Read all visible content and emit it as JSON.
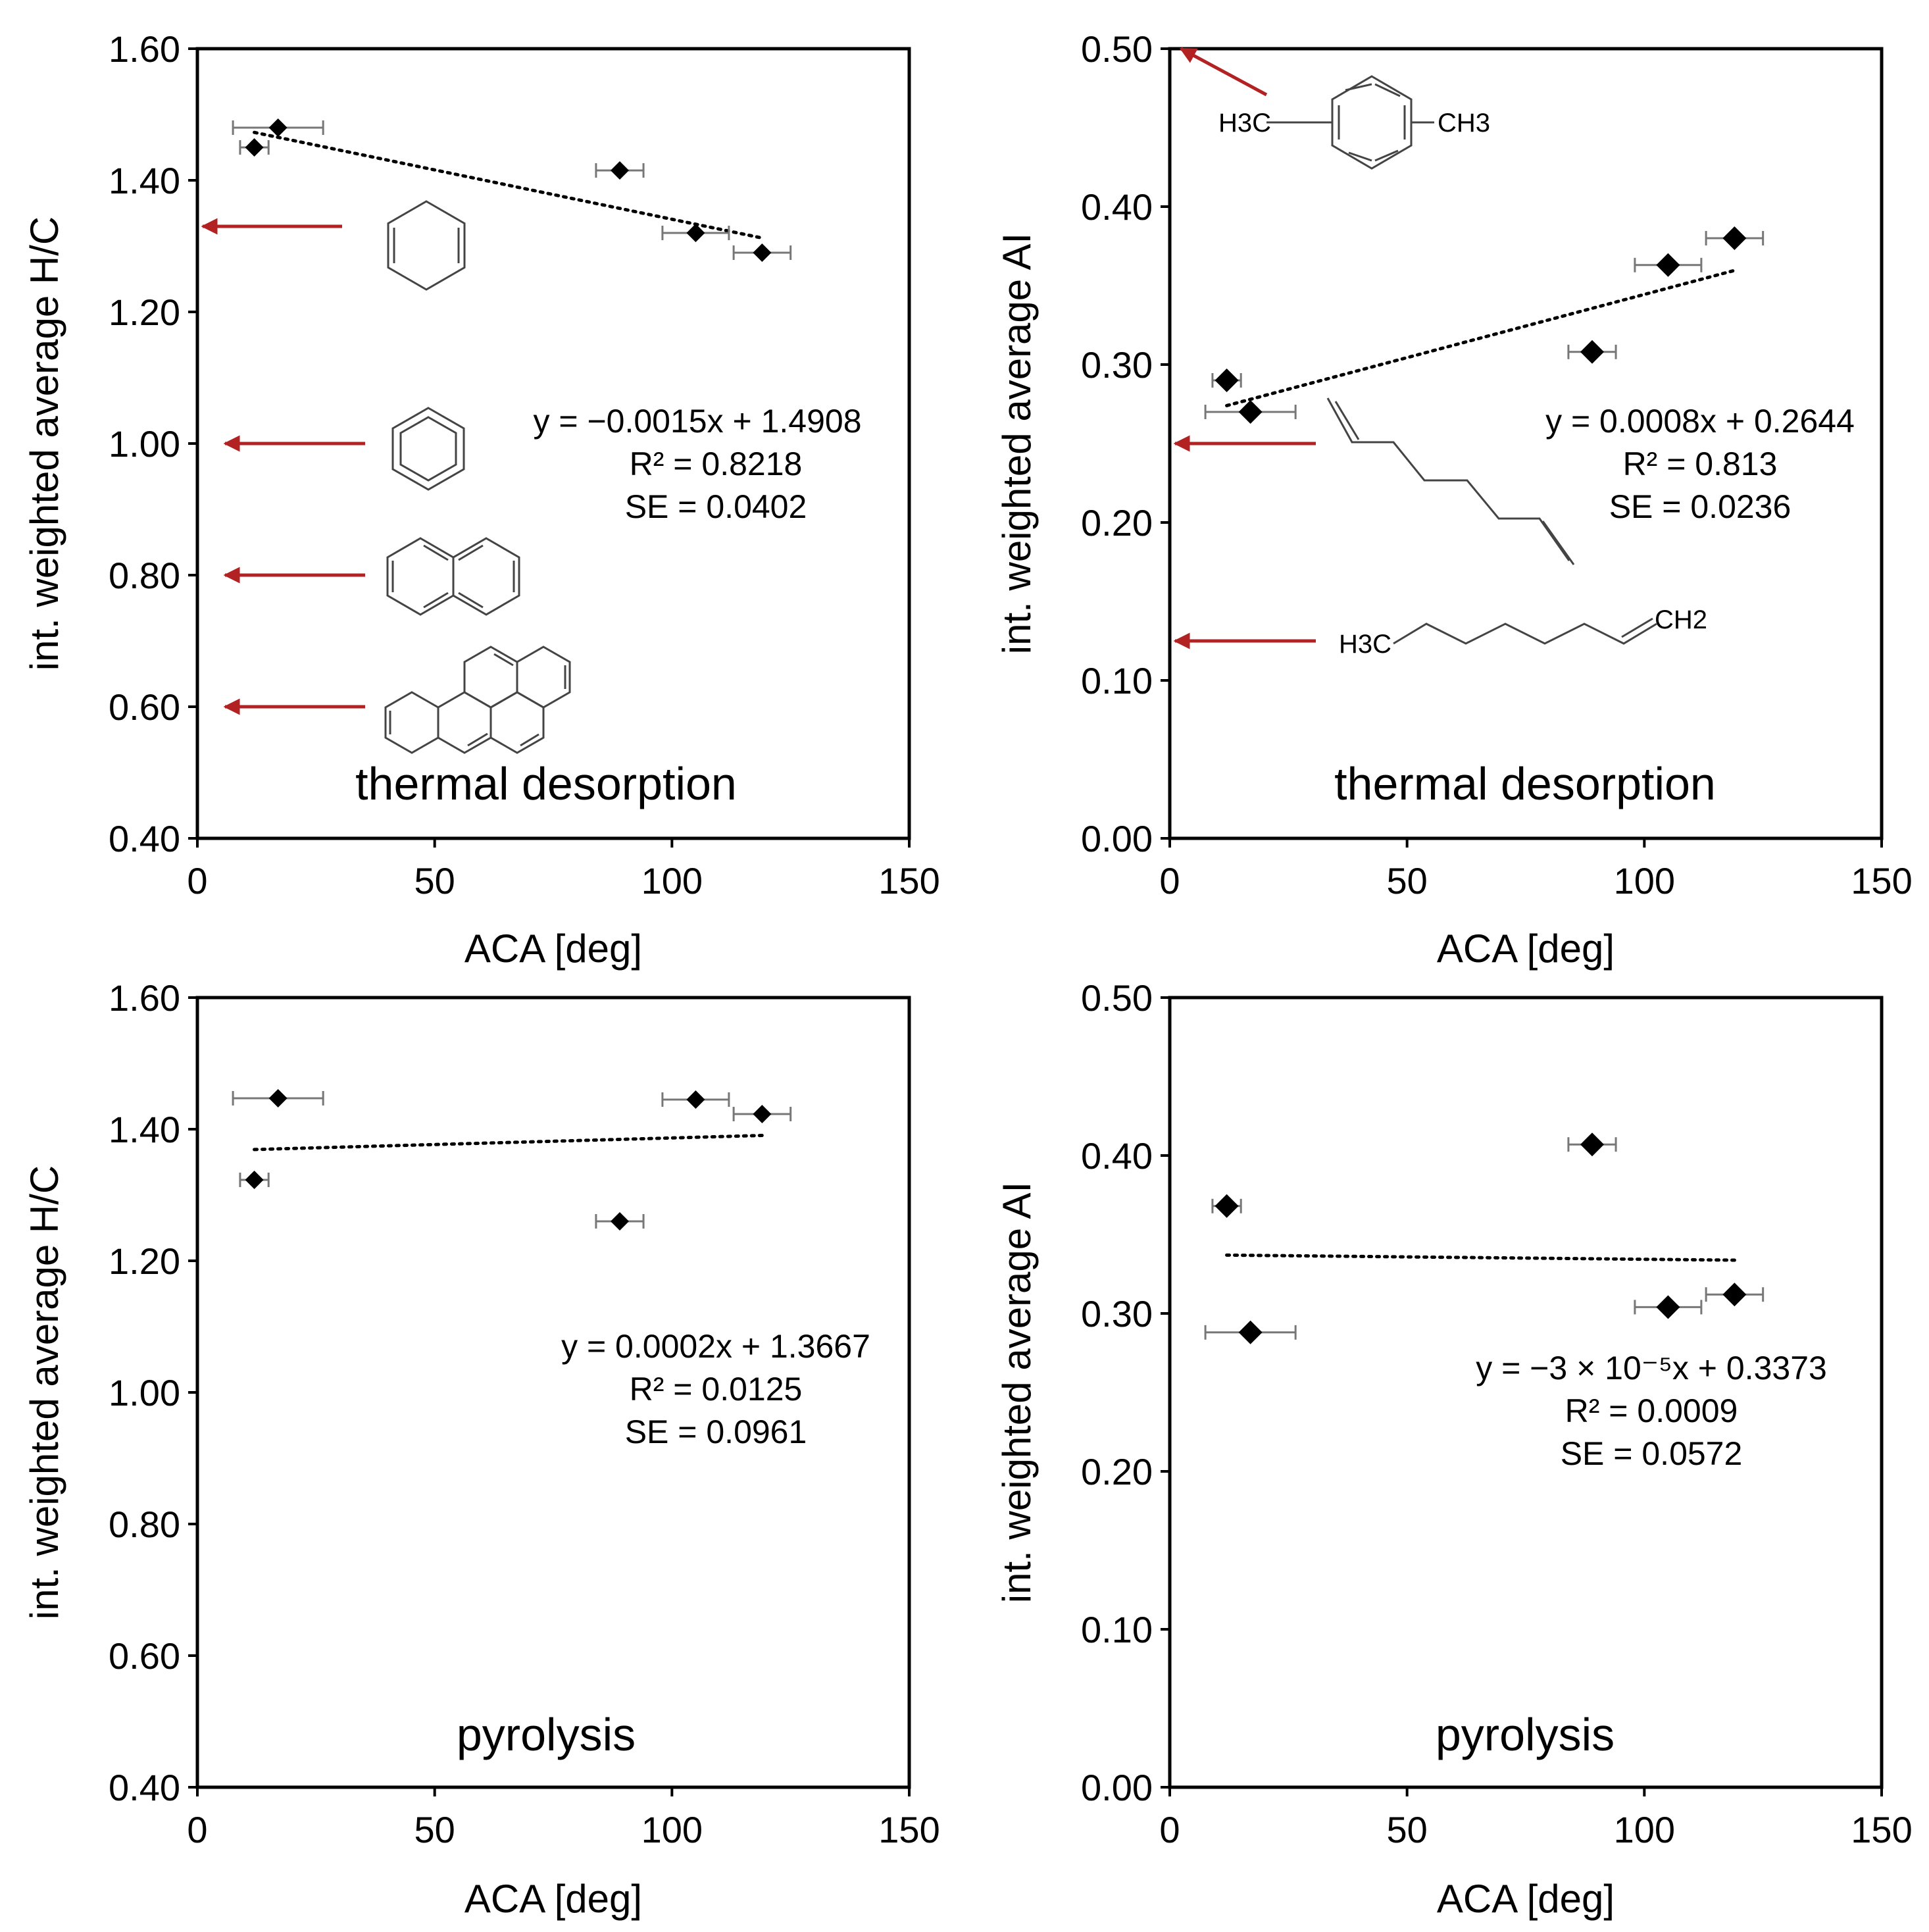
{
  "colors": {
    "markers": "#000000",
    "arrows": "#b22222",
    "structures": "#444444"
  },
  "chart_data": [
    {
      "id": "td-hc",
      "type": "scatter",
      "panel_label": "thermal desorption",
      "xlabel": "ACA [deg]",
      "ylabel": "int. weighted average H/C",
      "xlim": [
        0,
        150
      ],
      "ylim": [
        0.4,
        1.6
      ],
      "xticks": [
        "0",
        "50",
        "100",
        "150"
      ],
      "yticks": [
        "0.40",
        "0.60",
        "0.80",
        "1.00",
        "1.20",
        "1.40",
        "1.60"
      ],
      "grid": false,
      "marker_size": 14,
      "points": [
        {
          "x": 12,
          "y": 1.45,
          "xerr": 3
        },
        {
          "x": 17,
          "y": 1.48,
          "xerr": 9.5
        },
        {
          "x": 89,
          "y": 1.415,
          "xerr": 5
        },
        {
          "x": 105,
          "y": 1.32,
          "xerr": 7
        },
        {
          "x": 119,
          "y": 1.29,
          "xerr": 6
        }
      ],
      "trend": {
        "slope": -0.0015,
        "intercept": 1.4908,
        "x_range": [
          12,
          119
        ]
      },
      "equation": [
        "y = −0.0015x + 1.4908",
        "R² = 0.8218",
        "SE = 0.0402"
      ],
      "reference_arrows": [
        {
          "y": 1.33,
          "structure": "cyclohexadiene-icon"
        },
        {
          "y": 1.0,
          "structure": "benzene-icon"
        },
        {
          "y": 0.8,
          "structure": "naphthalene-icon"
        },
        {
          "y": 0.6,
          "structure": "benzopyrene-icon"
        }
      ]
    },
    {
      "id": "td-ai",
      "type": "scatter",
      "panel_label": "thermal desorption",
      "xlabel": "ACA [deg]",
      "ylabel": "int. weighted average AI",
      "xlim": [
        0,
        150
      ],
      "ylim": [
        0.0,
        0.5
      ],
      "xticks": [
        "0",
        "50",
        "100",
        "150"
      ],
      "yticks": [
        "0.00",
        "0.10",
        "0.20",
        "0.30",
        "0.40",
        "0.50"
      ],
      "grid": false,
      "marker_size": 18,
      "points": [
        {
          "x": 12,
          "y": 0.29,
          "xerr": 3
        },
        {
          "x": 17,
          "y": 0.27,
          "xerr": 9.5
        },
        {
          "x": 89,
          "y": 0.308,
          "xerr": 5
        },
        {
          "x": 105,
          "y": 0.363,
          "xerr": 7
        },
        {
          "x": 119,
          "y": 0.38,
          "xerr": 6
        }
      ],
      "trend": {
        "slope": 0.0008,
        "intercept": 0.2644,
        "x_range": [
          12,
          119
        ]
      },
      "equation": [
        "y = 0.0008x + 0.2644",
        "R² = 0.813",
        "SE = 0.0236"
      ],
      "reference_arrows": [
        {
          "y": 0.5,
          "structure": "p-xylene-icon"
        },
        {
          "y": 0.25,
          "structure": "nonadiene-icon"
        },
        {
          "y": 0.125,
          "structure": "nonene-icon"
        }
      ],
      "chem_labels": {
        "p_xylene_left": "H3C",
        "p_xylene_right": "CH3",
        "nonene_left": "H3C",
        "nonene_right": "CH2"
      }
    },
    {
      "id": "py-hc",
      "type": "scatter",
      "panel_label": "pyrolysis",
      "xlabel": "ACA [deg]",
      "ylabel": "int. weighted average H/C",
      "xlim": [
        0,
        150
      ],
      "ylim": [
        0.4,
        1.6
      ],
      "xticks": [
        "0",
        "50",
        "100",
        "150"
      ],
      "yticks": [
        "0.40",
        "0.60",
        "0.80",
        "1.00",
        "1.20",
        "1.40",
        "1.60"
      ],
      "grid": false,
      "marker_size": 14,
      "points": [
        {
          "x": 12,
          "y": 1.323,
          "xerr": 3
        },
        {
          "x": 17,
          "y": 1.447,
          "xerr": 9.5
        },
        {
          "x": 89,
          "y": 1.26,
          "xerr": 5
        },
        {
          "x": 105,
          "y": 1.445,
          "xerr": 7
        },
        {
          "x": 119,
          "y": 1.423,
          "xerr": 6
        }
      ],
      "trend": {
        "slope": 0.0002,
        "intercept": 1.3667,
        "x_range": [
          12,
          119
        ]
      },
      "equation": [
        "y = 0.0002x + 1.3667",
        "R² = 0.0125",
        "SE = 0.0961"
      ]
    },
    {
      "id": "py-ai",
      "type": "scatter",
      "panel_label": "pyrolysis",
      "xlabel": "ACA [deg]",
      "ylabel": "int. weighted average AI",
      "xlim": [
        0,
        150
      ],
      "ylim": [
        0.0,
        0.5
      ],
      "xticks": [
        "0",
        "50",
        "100",
        "150"
      ],
      "yticks": [
        "0.00",
        "0.10",
        "0.20",
        "0.30",
        "0.40",
        "0.50"
      ],
      "grid": false,
      "marker_size": 18,
      "points": [
        {
          "x": 12,
          "y": 0.368,
          "xerr": 3
        },
        {
          "x": 17,
          "y": 0.288,
          "xerr": 9.5
        },
        {
          "x": 89,
          "y": 0.407,
          "xerr": 5
        },
        {
          "x": 105,
          "y": 0.304,
          "xerr": 7
        },
        {
          "x": 119,
          "y": 0.312,
          "xerr": 6
        }
      ],
      "trend": {
        "slope": -3e-05,
        "intercept": 0.3373,
        "x_range": [
          12,
          119
        ]
      },
      "equation": [
        "y = −3 × 10⁻⁵x + 0.3373",
        "R² = 0.0009",
        "SE = 0.0572"
      ]
    }
  ]
}
